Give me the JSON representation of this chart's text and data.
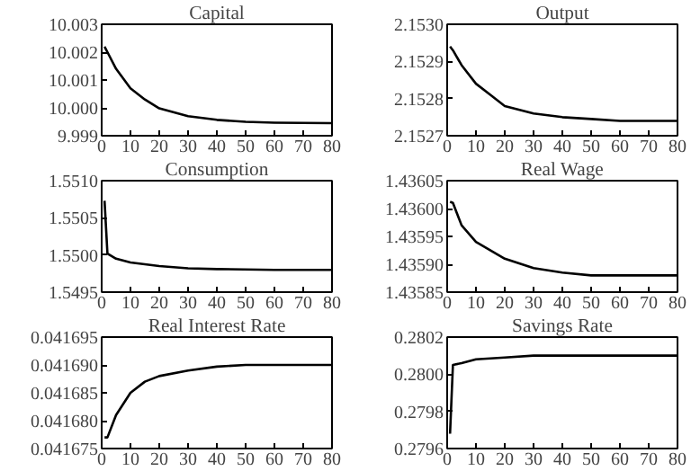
{
  "chart_data": [
    {
      "type": "line",
      "title": "Capital",
      "x": [
        1,
        2,
        5,
        10,
        15,
        20,
        30,
        40,
        50,
        60,
        80
      ],
      "values": [
        10.0022,
        10.002,
        10.0014,
        10.0007,
        10.0003,
        9.99998,
        9.9997,
        9.99957,
        9.9995,
        9.99947,
        9.99945
      ],
      "color": "#000000",
      "xlim": [
        0,
        80
      ],
      "xticks": [
        0,
        10,
        20,
        30,
        40,
        50,
        60,
        70,
        80
      ],
      "ylim": [
        9.999,
        10.003
      ],
      "yticks": [
        {
          "value": 9.999,
          "label": "9.999"
        },
        {
          "value": 10.0,
          "label": "10.000"
        },
        {
          "value": 10.001,
          "label": "10.001"
        },
        {
          "value": 10.002,
          "label": "10.002"
        },
        {
          "value": 10.003,
          "label": "10.003"
        }
      ],
      "grid": false
    },
    {
      "type": "line",
      "title": "Output",
      "x": [
        1,
        2,
        5,
        10,
        15,
        20,
        30,
        40,
        50,
        60,
        80
      ],
      "values": [
        2.15294,
        2.15293,
        2.15289,
        2.15284,
        2.15281,
        2.15278,
        2.15276,
        2.15275,
        2.152745,
        2.15274,
        2.15274
      ],
      "color": "#000000",
      "xlim": [
        0,
        80
      ],
      "xticks": [
        0,
        10,
        20,
        30,
        40,
        50,
        60,
        70,
        80
      ],
      "ylim": [
        2.1527,
        2.153
      ],
      "yticks": [
        {
          "value": 2.1527,
          "label": "2.1527"
        },
        {
          "value": 2.1528,
          "label": "2.1528"
        },
        {
          "value": 2.1529,
          "label": "2.1529"
        },
        {
          "value": 2.153,
          "label": "2.1530"
        }
      ],
      "grid": false
    },
    {
      "type": "line",
      "title": "Consumption",
      "x": [
        1,
        2,
        5,
        10,
        20,
        30,
        40,
        60,
        80
      ],
      "values": [
        1.55073,
        1.55002,
        1.54995,
        1.5499,
        1.54985,
        1.54982,
        1.54981,
        1.5498,
        1.5498
      ],
      "color": "#000000",
      "xlim": [
        0,
        80
      ],
      "xticks": [
        0,
        10,
        20,
        30,
        40,
        50,
        60,
        70,
        80
      ],
      "ylim": [
        1.5495,
        1.551
      ],
      "yticks": [
        {
          "value": 1.5495,
          "label": "1.5495"
        },
        {
          "value": 1.55,
          "label": "1.5500"
        },
        {
          "value": 1.5505,
          "label": "1.5505"
        },
        {
          "value": 1.551,
          "label": "1.5510"
        }
      ],
      "grid": false
    },
    {
      "type": "line",
      "title": "Real Wage",
      "x": [
        1,
        2,
        5,
        10,
        20,
        30,
        40,
        50,
        80
      ],
      "values": [
        1.436012,
        1.43601,
        1.43597,
        1.43594,
        1.43591,
        1.435893,
        1.435885,
        1.43588,
        1.43588
      ],
      "color": "#000000",
      "xlim": [
        0,
        80
      ],
      "xticks": [
        0,
        10,
        20,
        30,
        40,
        50,
        60,
        70,
        80
      ],
      "ylim": [
        1.43585,
        1.43605
      ],
      "yticks": [
        1.43585,
        {
          "value": 1.4359,
          "label": "1.43590"
        },
        1.43595,
        {
          "value": 1.436,
          "label": "1.43600"
        },
        1.43605
      ],
      "grid": false
    },
    {
      "type": "line",
      "title": "Real Interest Rate",
      "x": [
        1,
        2,
        5,
        10,
        15,
        20,
        30,
        40,
        50,
        80
      ],
      "values": [
        0.041677,
        0.041677,
        0.041681,
        0.041685,
        0.041687,
        0.041688,
        0.041689,
        0.0416897,
        0.04169,
        0.04169
      ],
      "color": "#000000",
      "xlim": [
        0,
        80
      ],
      "xticks": [
        0,
        10,
        20,
        30,
        40,
        50,
        60,
        70,
        80
      ],
      "ylim": [
        0.041675,
        0.041695
      ],
      "yticks": [
        0.041675,
        {
          "value": 0.04168,
          "label": "0.041680"
        },
        0.041685,
        {
          "value": 0.04169,
          "label": "0.041690"
        },
        0.041695
      ],
      "grid": false
    },
    {
      "type": "line",
      "title": "Savings Rate",
      "x": [
        1,
        2,
        5,
        10,
        20,
        30,
        80
      ],
      "values": [
        0.27968,
        0.28005,
        0.28006,
        0.28008,
        0.28009,
        0.2801,
        0.2801
      ],
      "color": "#000000",
      "xlim": [
        0,
        80
      ],
      "xticks": [
        0,
        10,
        20,
        30,
        40,
        50,
        60,
        70,
        80
      ],
      "ylim": [
        0.2796,
        0.2802
      ],
      "yticks": [
        0.2796,
        0.2798,
        {
          "value": 0.28,
          "label": "0.2800"
        },
        0.2802
      ],
      "grid": false
    }
  ]
}
